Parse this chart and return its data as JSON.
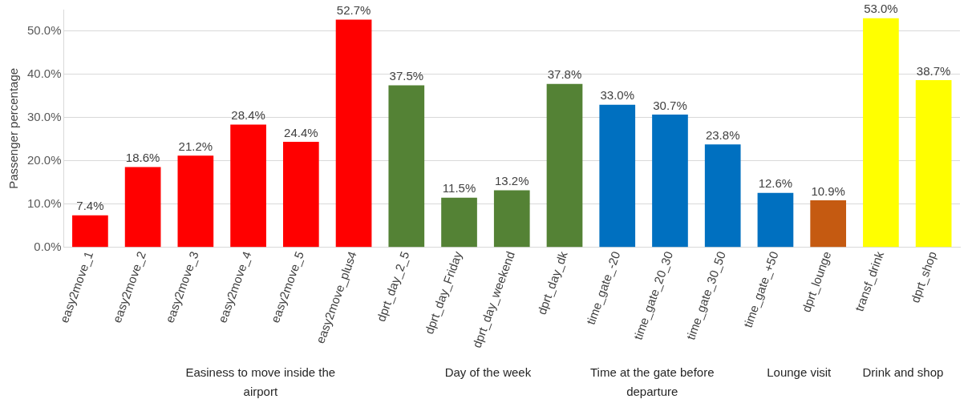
{
  "chart_data": {
    "type": "bar",
    "ylabel": "Passenger percentage",
    "categories": [
      "easy2move_1",
      "easy2move_2",
      "easy2move_3",
      "easy2move_4",
      "easy2move_5",
      "easy2move_plus4",
      "dprt_day_2_5",
      "dprt_day_Friday",
      "dprt_day_weekend",
      "dprt_day_dk",
      "time_gate_-20",
      "time_gate_20_30",
      "time_gate_30_50",
      "time_gate_+50",
      "dprt_lounge",
      "transf_drink",
      "dprt_shop"
    ],
    "values": [
      7.4,
      18.6,
      21.2,
      28.4,
      24.4,
      52.7,
      37.5,
      11.5,
      13.2,
      37.8,
      33.0,
      30.7,
      23.8,
      12.6,
      10.9,
      53.0,
      38.7
    ],
    "colors": [
      "#ff0000",
      "#ff0000",
      "#ff0000",
      "#ff0000",
      "#ff0000",
      "#ff0000",
      "#548235",
      "#548235",
      "#548235",
      "#548235",
      "#0070c0",
      "#0070c0",
      "#0070c0",
      "#0070c0",
      "#c55a11",
      "#ffff00",
      "#ffff00"
    ],
    "value_labels": [
      "7.4%",
      "18.6%",
      "21.2%",
      "28.4%",
      "24.4%",
      "52.7%",
      "37.5%",
      "11.5%",
      "13.2%",
      "37.8%",
      "33.0%",
      "30.7%",
      "23.8%",
      "12.6%",
      "10.9%",
      "53.0%",
      "38.7%"
    ],
    "ylim": [
      0,
      55
    ],
    "yticks": [
      {
        "value": 0,
        "label": "0.0%"
      },
      {
        "value": 10,
        "label": "10.0%"
      },
      {
        "value": 20,
        "label": "20.0%"
      },
      {
        "value": 30,
        "label": "30.0%"
      },
      {
        "value": 40,
        "label": "40.0%"
      },
      {
        "value": 50,
        "label": "50.0%"
      }
    ],
    "grid": "y",
    "annotations": [
      "Easiness to move inside the airport",
      "Day of the week",
      "Time at the gate before departure",
      "Lounge visit",
      "Drink and shop"
    ]
  }
}
